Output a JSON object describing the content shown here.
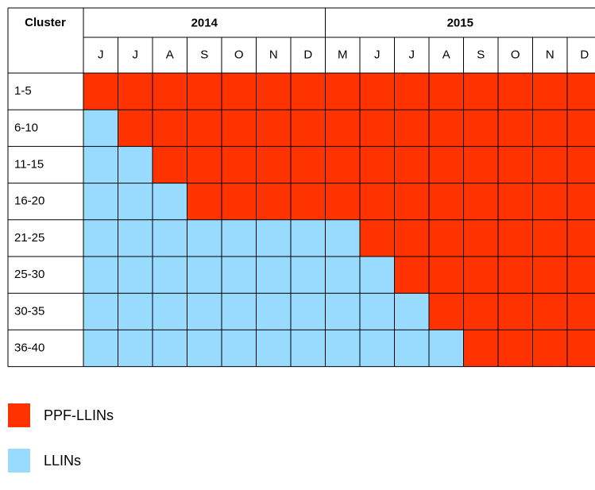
{
  "header": {
    "cluster": "Cluster",
    "years": [
      {
        "label": "2014",
        "span": 7
      },
      {
        "label": "2015",
        "span": 8
      }
    ]
  },
  "months": [
    "J",
    "J",
    "A",
    "S",
    "O",
    "N",
    "D",
    "M",
    "J",
    "J",
    "A",
    "S",
    "O",
    "N",
    "D"
  ],
  "legend": [
    {
      "name": "PPF-LLINs",
      "color": "#ff3300"
    },
    {
      "name": "LLINs",
      "color": "#99dbff"
    }
  ],
  "rows": [
    {
      "label": "1-5",
      "cells": [
        "PPF-LLINs",
        "PPF-LLINs",
        "PPF-LLINs",
        "PPF-LLINs",
        "PPF-LLINs",
        "PPF-LLINs",
        "PPF-LLINs",
        "PPF-LLINs",
        "PPF-LLINs",
        "PPF-LLINs",
        "PPF-LLINs",
        "PPF-LLINs",
        "PPF-LLINs",
        "PPF-LLINs",
        "PPF-LLINs"
      ]
    },
    {
      "label": "6-10",
      "cells": [
        "LLINs",
        "PPF-LLINs",
        "PPF-LLINs",
        "PPF-LLINs",
        "PPF-LLINs",
        "PPF-LLINs",
        "PPF-LLINs",
        "PPF-LLINs",
        "PPF-LLINs",
        "PPF-LLINs",
        "PPF-LLINs",
        "PPF-LLINs",
        "PPF-LLINs",
        "PPF-LLINs",
        "PPF-LLINs"
      ]
    },
    {
      "label": "11-15",
      "cells": [
        "LLINs",
        "LLINs",
        "PPF-LLINs",
        "PPF-LLINs",
        "PPF-LLINs",
        "PPF-LLINs",
        "PPF-LLINs",
        "PPF-LLINs",
        "PPF-LLINs",
        "PPF-LLINs",
        "PPF-LLINs",
        "PPF-LLINs",
        "PPF-LLINs",
        "PPF-LLINs",
        "PPF-LLINs"
      ]
    },
    {
      "label": "16-20",
      "cells": [
        "LLINs",
        "LLINs",
        "LLINs",
        "PPF-LLINs",
        "PPF-LLINs",
        "PPF-LLINs",
        "PPF-LLINs",
        "PPF-LLINs",
        "PPF-LLINs",
        "PPF-LLINs",
        "PPF-LLINs",
        "PPF-LLINs",
        "PPF-LLINs",
        "PPF-LLINs",
        "PPF-LLINs"
      ]
    },
    {
      "label": "21-25",
      "cells": [
        "LLINs",
        "LLINs",
        "LLINs",
        "LLINs",
        "LLINs",
        "LLINs",
        "LLINs",
        "LLINs",
        "PPF-LLINs",
        "PPF-LLINs",
        "PPF-LLINs",
        "PPF-LLINs",
        "PPF-LLINs",
        "PPF-LLINs",
        "PPF-LLINs"
      ]
    },
    {
      "label": "25-30",
      "cells": [
        "LLINs",
        "LLINs",
        "LLINs",
        "LLINs",
        "LLINs",
        "LLINs",
        "LLINs",
        "LLINs",
        "LLINs",
        "PPF-LLINs",
        "PPF-LLINs",
        "PPF-LLINs",
        "PPF-LLINs",
        "PPF-LLINs",
        "PPF-LLINs"
      ]
    },
    {
      "label": "30-35",
      "cells": [
        "LLINs",
        "LLINs",
        "LLINs",
        "LLINs",
        "LLINs",
        "LLINs",
        "LLINs",
        "LLINs",
        "LLINs",
        "LLINs",
        "PPF-LLINs",
        "PPF-LLINs",
        "PPF-LLINs",
        "PPF-LLINs",
        "PPF-LLINs"
      ]
    },
    {
      "label": "36-40",
      "cells": [
        "LLINs",
        "LLINs",
        "LLINs",
        "LLINs",
        "LLINs",
        "LLINs",
        "LLINs",
        "LLINs",
        "LLINs",
        "LLINs",
        "LLINs",
        "PPF-LLINs",
        "PPF-LLINs",
        "PPF-LLINs",
        "PPF-LLINs"
      ]
    }
  ]
}
